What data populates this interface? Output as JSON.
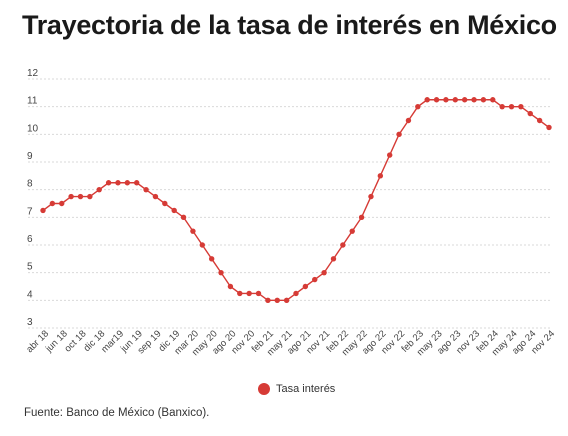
{
  "title": "Trayectoria de la tasa de interés en México",
  "source": "Fuente: Banco de México (Banxico).",
  "colors": {
    "series": "#d63b36",
    "grid": "#d9d9d9",
    "text": "#444444"
  },
  "chart_data": {
    "type": "line",
    "title": "Trayectoria de la tasa de interés en México",
    "xlabel": "",
    "ylabel": "",
    "ylim": [
      3,
      12
    ],
    "yticks": [
      3,
      4,
      5,
      6,
      7,
      8,
      9,
      10,
      11,
      12
    ],
    "grid": true,
    "legend_position": "bottom",
    "x_tick_labels": [
      "abr 18",
      "jun 18",
      "oct 18",
      "dic 18",
      "mar19",
      "jun 19",
      "sep 19",
      "dic 19",
      "mar 20",
      "may 20",
      "ago 20",
      "nov 20",
      "feb 21",
      "may 21",
      "ago 21",
      "nov 21",
      "feb 22",
      "may 22",
      "ago 22",
      "nov 22",
      "feb 23",
      "may 23",
      "ago 23",
      "nov 23",
      "feb 24",
      "may 24",
      "ago 24",
      "nov 24"
    ],
    "series": [
      {
        "name": "Tasa interés",
        "values": [
          7.25,
          7.5,
          7.5,
          7.75,
          7.75,
          7.75,
          8.0,
          8.25,
          8.25,
          8.25,
          8.25,
          8.0,
          7.75,
          7.5,
          7.25,
          7.0,
          6.5,
          6.0,
          5.5,
          5.0,
          4.5,
          4.25,
          4.25,
          4.25,
          4.0,
          4.0,
          4.0,
          4.25,
          4.5,
          4.75,
          5.0,
          5.5,
          6.0,
          6.5,
          7.0,
          7.75,
          8.5,
          9.25,
          10.0,
          10.5,
          11.0,
          11.25,
          11.25,
          11.25,
          11.25,
          11.25,
          11.25,
          11.25,
          11.25,
          11.0,
          11.0,
          11.0,
          10.75,
          10.5,
          10.25
        ]
      }
    ]
  }
}
